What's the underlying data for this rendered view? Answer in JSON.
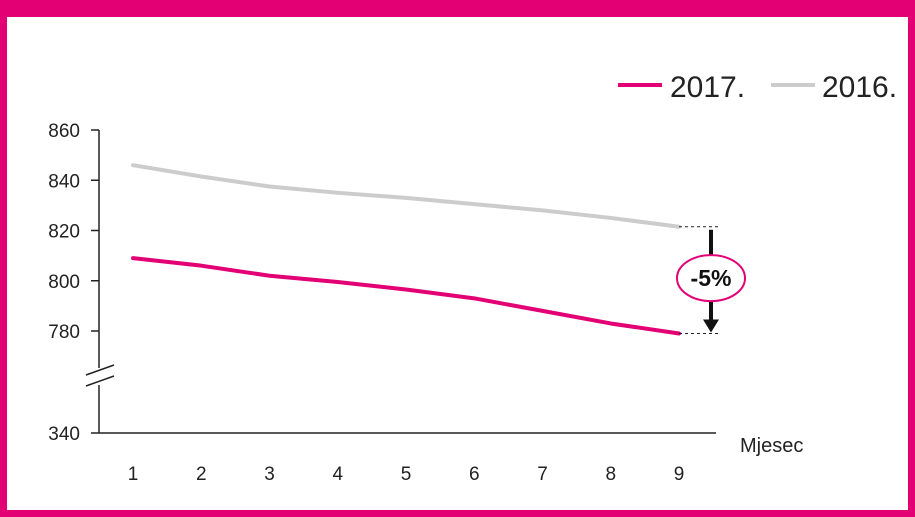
{
  "colors": {
    "accent": "#e20074",
    "series_2017": "#e20074",
    "series_2016": "#cccccc",
    "axis": "#222222"
  },
  "chart_data": {
    "type": "line",
    "title": "",
    "xlabel": "Mjesec",
    "ylabel": "",
    "x": [
      1,
      2,
      3,
      4,
      5,
      6,
      7,
      8,
      9
    ],
    "x_tick_labels": [
      "1",
      "2",
      "3",
      "4",
      "5",
      "6",
      "7",
      "8",
      "9"
    ],
    "y_tick_labels": [
      "860",
      "840",
      "820",
      "800",
      "780",
      "340"
    ],
    "ylim_upper": [
      775,
      860
    ],
    "y_axis_break": true,
    "y_axis_bottom_value": 340,
    "grid": false,
    "legend_position": "top-right",
    "series": [
      {
        "name": "2017.",
        "color": "#e20074",
        "values": [
          809,
          806,
          802,
          799.5,
          796.5,
          793,
          788,
          783,
          779
        ]
      },
      {
        "name": "2016.",
        "color": "#cccccc",
        "values": [
          846,
          841.5,
          837.5,
          835,
          833,
          830.5,
          828,
          825,
          821.5
        ]
      }
    ],
    "annotations": [
      {
        "text": "-5%",
        "at_x": 9,
        "from_value": 821.5,
        "to_value": 779
      }
    ]
  }
}
